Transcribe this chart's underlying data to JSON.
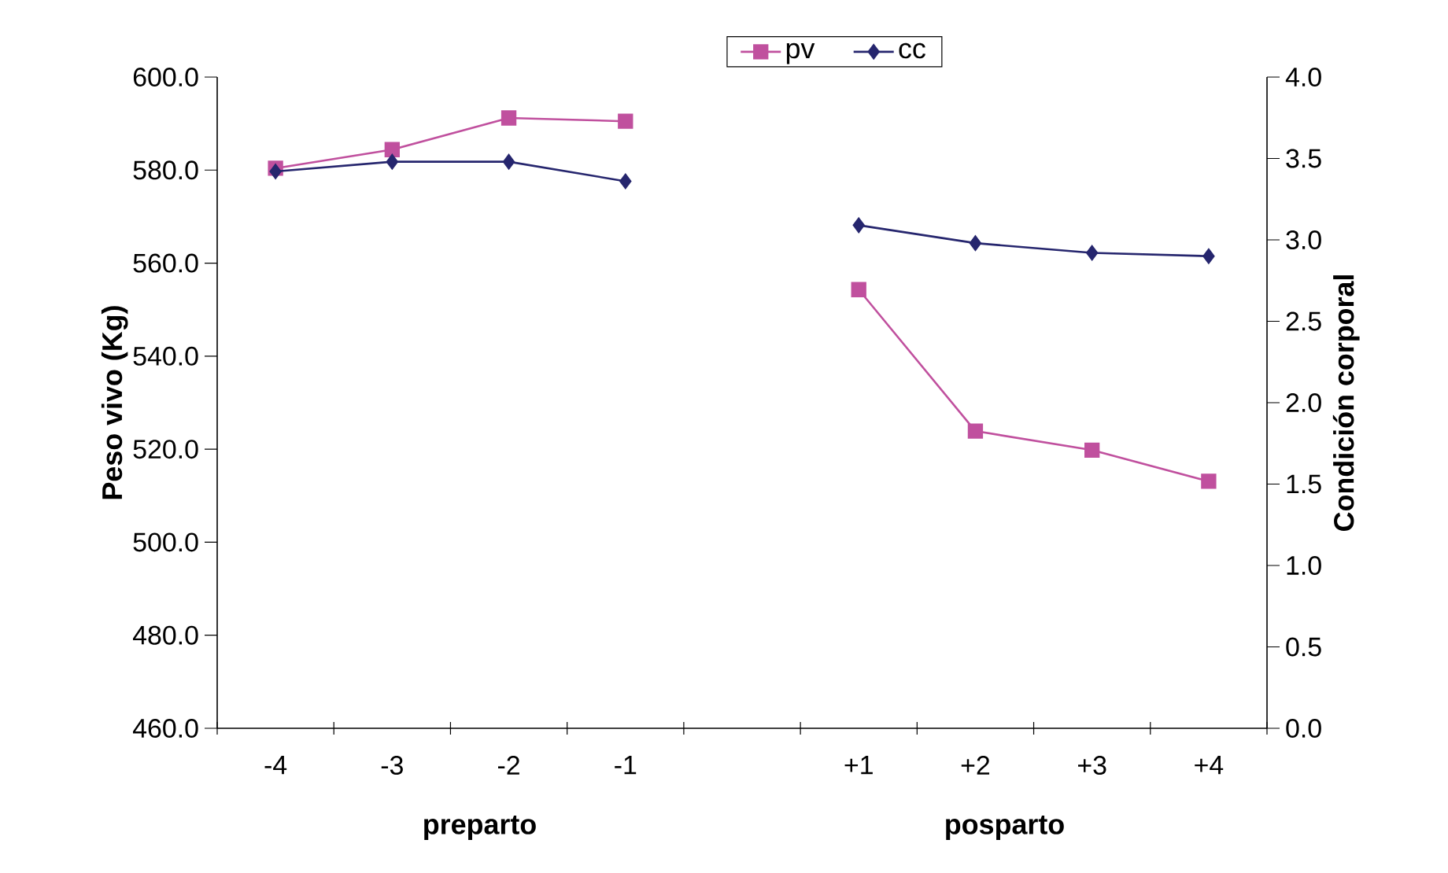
{
  "chart_data": {
    "type": "line",
    "categories": [
      "-4",
      "-3",
      "-2",
      "-1",
      null,
      "+1",
      "+2",
      "+3",
      "+4"
    ],
    "series": [
      {
        "name": "pv",
        "color": "#c0509e",
        "marker": "square",
        "values": [
          580.4,
          584.4,
          591.2,
          590.5,
          null,
          554.3,
          523.9,
          519.8,
          513.1
        ]
      },
      {
        "name": "cc",
        "color": "#26266e",
        "marker": "diamond",
        "axis": "y2",
        "values": [
          3.42,
          3.48,
          3.48,
          3.36,
          null,
          3.09,
          2.98,
          2.92,
          2.9
        ]
      }
    ],
    "ylabel": "Peso vivo (Kg)",
    "y2label": "Condición corporal",
    "annotations": [
      "preparto",
      "posparto"
    ],
    "ylim": [
      460,
      600
    ],
    "yticks": [
      {
        "value": 460,
        "label": "460.0"
      },
      {
        "value": 480,
        "label": "480.0"
      },
      {
        "value": 500,
        "label": "500.0"
      },
      {
        "value": 520,
        "label": "520.0"
      },
      {
        "value": 540,
        "label": "540.0"
      },
      {
        "value": 560,
        "label": "560.0"
      },
      {
        "value": 580,
        "label": "580.0"
      },
      {
        "value": 600,
        "label": "600.0"
      }
    ],
    "y2lim": [
      0,
      4
    ],
    "y2ticks": [
      {
        "value": 0,
        "label": "0.0"
      },
      {
        "value": 0.5,
        "label": "0.5"
      },
      {
        "value": 1,
        "label": "1.0"
      },
      {
        "value": 1.5,
        "label": "1.5"
      },
      {
        "value": 2,
        "label": "2.0"
      },
      {
        "value": 2.5,
        "label": "2.5"
      },
      {
        "value": 3,
        "label": "3.0"
      },
      {
        "value": 3.5,
        "label": "3.5"
      },
      {
        "value": 4,
        "label": "4.0"
      }
    ],
    "grid": false,
    "legend": "top",
    "line_style": "solid"
  }
}
